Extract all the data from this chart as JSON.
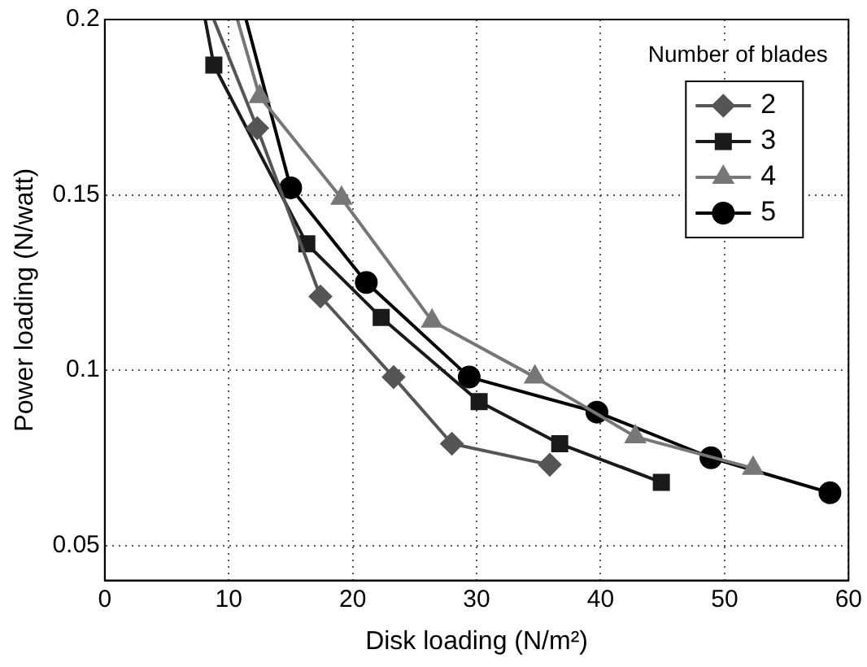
{
  "chart_data": {
    "type": "line",
    "xlabel": "Disk loading (N/m²)",
    "ylabel": "Power loading (N/watt)",
    "legend_title": "Number of blades",
    "legend": "top right",
    "grid": true,
    "line_style": "solid",
    "xlim": [
      0,
      60
    ],
    "xticks": [
      0,
      10,
      20,
      30,
      40,
      50,
      60
    ],
    "ylim": [
      0.04,
      0.2
    ],
    "yticks": [
      0.05,
      0.1,
      0.15,
      0.2
    ],
    "series": [
      {
        "name": "2",
        "color": "#555555",
        "marker": "diamond",
        "x": [
          8.8,
          12.3,
          17.4,
          23.3,
          28.0,
          35.9
        ],
        "values": [
          0.2,
          0.169,
          0.121,
          0.098,
          0.079,
          0.073
        ]
      },
      {
        "name": "3",
        "color": "#1a1a1a",
        "marker": "square",
        "x": [
          8.1,
          8.8,
          16.3,
          22.3,
          30.2,
          36.7,
          44.9
        ],
        "values": [
          0.2,
          0.187,
          0.136,
          0.115,
          0.091,
          0.079,
          0.068
        ]
      },
      {
        "name": "4",
        "color": "#777777",
        "marker": "triangle",
        "x": [
          10.7,
          12.5,
          19.1,
          26.4,
          34.7,
          42.8,
          52.3
        ],
        "values": [
          0.2,
          0.178,
          0.149,
          0.114,
          0.098,
          0.081,
          0.072
        ]
      },
      {
        "name": "5",
        "color": "#000000",
        "marker": "circle",
        "x": [
          11.4,
          15.0,
          21.1,
          29.4,
          39.7,
          48.9,
          58.5
        ],
        "values": [
          0.2,
          0.152,
          0.125,
          0.098,
          0.088,
          0.075,
          0.065
        ]
      }
    ]
  }
}
